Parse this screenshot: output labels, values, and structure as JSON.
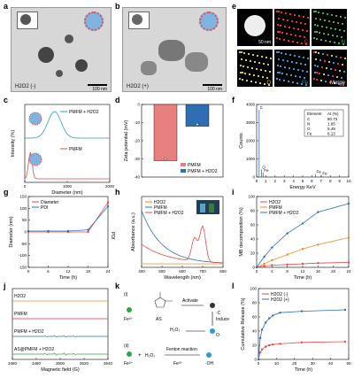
{
  "panels": {
    "a": "a",
    "b": "b",
    "c": "c",
    "d": "d",
    "e": "e",
    "f": "f",
    "g": "g",
    "h": "h",
    "i": "i",
    "j": "j",
    "k": "k",
    "l": "l"
  },
  "tem": {
    "a": {
      "caption": "H2O2 (-)",
      "scale": "100 nm"
    },
    "b": {
      "caption": "H2O2 (+)",
      "scale": "100 nm"
    }
  },
  "eds_maps": [
    {
      "label": "",
      "color": "#ffffff",
      "inset": "50 nm"
    },
    {
      "label": "C",
      "color": "#e8322c"
    },
    {
      "label": "N",
      "color": "#35b04a"
    },
    {
      "label": "O",
      "color": "#d7cf2a"
    },
    {
      "label": "Fe",
      "color": "#2b9bd8"
    },
    {
      "label": "Merge",
      "color": "#ffffff"
    }
  ],
  "chart_data": [
    {
      "id": "c",
      "type": "line",
      "xlabel": "Diameter (nm)",
      "ylabel": "Intensity (%)",
      "xlim": [
        0,
        2000
      ],
      "series": [
        {
          "name": "PMFM + H2O2",
          "color": "#2aa0b5",
          "peak": 700
        },
        {
          "name": "PMFM",
          "color": "#e24b4b",
          "peak": 130
        }
      ],
      "ticks_x": [
        "0",
        "1000",
        "2000"
      ]
    },
    {
      "id": "d",
      "type": "bar",
      "ylabel": "Zeta potential (mV)",
      "ylim": [
        -40,
        0
      ],
      "categories": [
        "PMFM",
        "PMFM + H2O2"
      ],
      "values": [
        -31,
        -12
      ],
      "colors": [
        "#e88080",
        "#2e6fb3"
      ],
      "ticks_y": [
        "0",
        "-10",
        "-20",
        "-30",
        "-40"
      ]
    },
    {
      "id": "f",
      "type": "line",
      "xlabel": "Energy KeV",
      "ylabel": "Counts",
      "ylim": [
        0,
        4000
      ],
      "xlim": [
        0,
        10
      ],
      "peaks": [
        {
          "label": "C",
          "x": 0.27,
          "y": 3700
        },
        {
          "label": "O",
          "x": 0.52,
          "y": 420
        },
        {
          "label": "Fe",
          "x": 0.7,
          "y": 250
        },
        {
          "label": "Fe",
          "x": 6.4,
          "y": 160
        },
        {
          "label": "Fe",
          "x": 7.06,
          "y": 80
        }
      ],
      "ticks_y": [
        "0",
        "1000",
        "2000",
        "3000",
        "4000"
      ],
      "ticks_x": [
        "0",
        "1",
        "2",
        "3",
        "4",
        "5",
        "6",
        "7",
        "8",
        "9",
        "10"
      ],
      "table": {
        "headers": [
          "Element",
          "At (%)"
        ],
        "rows": [
          [
            "C",
            "80.73"
          ],
          [
            "N",
            "1.65"
          ],
          [
            "O",
            "5.49"
          ],
          [
            "Fe",
            "6.13"
          ]
        ]
      }
    },
    {
      "id": "g",
      "type": "line",
      "xlabel": "Time (h)",
      "ylabel": "Diameter (nm)",
      "ylabel2": "PDI",
      "x": [
        0,
        6,
        12,
        18,
        24
      ],
      "series": [
        {
          "name": "Diameter",
          "color": "#e24b4b",
          "values": [
            0,
            0,
            0,
            0,
            125
          ]
        },
        {
          "name": "PDI",
          "color": "#2e6fb3",
          "values": [
            0.05,
            0.05,
            0.05,
            0.06,
            0.25
          ]
        }
      ],
      "ticks_y": [
        "150",
        "100",
        "50",
        "0",
        "-50",
        "-100",
        "-150"
      ],
      "ticks_x": [
        "0",
        "6",
        "12",
        "18",
        "24"
      ]
    },
    {
      "id": "h",
      "type": "line",
      "xlabel": "Wavelength (nm)",
      "ylabel": "Absorbance (a.u.)",
      "xlim": [
        400,
        800
      ],
      "series": [
        {
          "name": "H2O2",
          "color": "#f08a26"
        },
        {
          "name": "PMFM",
          "color": "#2e6fb3"
        },
        {
          "name": "PMFM + H2O2",
          "color": "#e24b4b"
        }
      ],
      "ticks_x": [
        "400",
        "500",
        "600",
        "700",
        "800"
      ]
    },
    {
      "id": "i",
      "type": "line",
      "xlabel": "Time (h)",
      "ylabel": "MB decomposition (%)",
      "ylim": [
        0,
        100
      ],
      "x": [
        0,
        2,
        4,
        8,
        12,
        16,
        24
      ],
      "series": [
        {
          "name": "H2O2",
          "color": "#e24b4b",
          "values": [
            0,
            2,
            3,
            4,
            5,
            6,
            7
          ]
        },
        {
          "name": "PMFM",
          "color": "#f08a26",
          "values": [
            0,
            5,
            10,
            18,
            26,
            32,
            42
          ]
        },
        {
          "name": "PMFM + H2O2",
          "color": "#2e6fb3",
          "values": [
            0,
            15,
            28,
            48,
            62,
            78,
            90
          ]
        }
      ],
      "ticks_y": [
        "100",
        "80",
        "60",
        "40",
        "20",
        "0"
      ],
      "ticks_x": [
        "0",
        "4",
        "8",
        "12",
        "16",
        "20",
        "24"
      ]
    },
    {
      "id": "j",
      "type": "line",
      "xlabel": "Magnetic field (G)",
      "xlim": [
        3460,
        3540
      ],
      "series": [
        {
          "name": "H2O2",
          "color": "#f08a26"
        },
        {
          "name": "PMFM",
          "color": "#e8322c"
        },
        {
          "name": "PMFM + H2O2",
          "color": "#2e6fb3"
        },
        {
          "name": "AS@PMFM + H2O2",
          "color": "#2ca84a"
        }
      ],
      "ticks_x": [
        "3460",
        "3480",
        "3500",
        "3520",
        "3540"
      ]
    },
    {
      "id": "l",
      "type": "line",
      "xlabel": "Time (h)",
      "ylabel": "Cumulative Release (%)",
      "ylim": [
        0,
        100
      ],
      "xlim": [
        0,
        50
      ],
      "x": [
        0,
        1,
        2,
        4,
        6,
        8,
        12,
        24,
        48
      ],
      "series": [
        {
          "name": "H2O2 (-)",
          "color": "#e24b4b",
          "values": [
            0,
            10,
            14,
            18,
            20,
            21,
            22,
            24,
            25
          ]
        },
        {
          "name": "H2O2 (+)",
          "color": "#2e6fb3",
          "values": [
            0,
            30,
            42,
            52,
            58,
            62,
            66,
            68,
            70
          ]
        }
      ],
      "ticks_y": [
        "100",
        "80",
        "60",
        "40",
        "20",
        "0"
      ],
      "ticks_x": [
        "0",
        "10",
        "20",
        "30",
        "40",
        "50"
      ]
    }
  ],
  "scheme": {
    "i_label": "(i)",
    "ii_label": "(ii)",
    "fe2": "Fe²⁺",
    "fe3": "Fe³⁺",
    "as_label": "AS",
    "activate": "Activate",
    "induce": "Induce",
    "c_rad": "·C",
    "o_rad": "O·",
    "h2o2": "H₂O₂",
    "fenton": "Fenton reaction",
    "oh": "·OH",
    "plus": "+"
  }
}
